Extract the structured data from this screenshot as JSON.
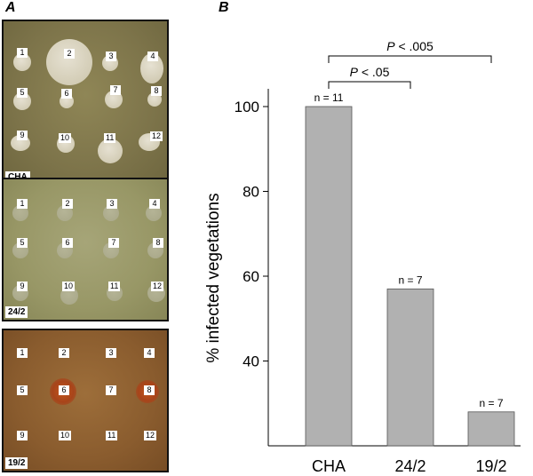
{
  "panel_a": {
    "letter": "A",
    "plates": [
      {
        "label": "CHA",
        "wells": [
          "1",
          "2",
          "3",
          "4",
          "5",
          "6",
          "7",
          "8",
          "9",
          "10",
          "11",
          "12"
        ]
      },
      {
        "label": "24/2",
        "wells": [
          "1",
          "2",
          "3",
          "4",
          "5",
          "6",
          "7",
          "8",
          "9",
          "10",
          "11",
          "12"
        ]
      },
      {
        "label": "19/2",
        "wells": [
          "1",
          "2",
          "3",
          "4",
          "5",
          "6",
          "7",
          "8",
          "9",
          "10",
          "11",
          "12"
        ]
      }
    ]
  },
  "panel_b": {
    "letter": "B"
  },
  "chart_data": {
    "type": "bar",
    "categories": [
      "CHA",
      "24/2",
      "19/2"
    ],
    "values": [
      100,
      57,
      28
    ],
    "data_labels": [
      "n = 11",
      "n = 7",
      "n = 7"
    ],
    "ylabel": "% infected vegetations",
    "xlabel": "",
    "ylim": [
      20,
      110
    ],
    "yticks": [
      "40",
      "60",
      "80",
      "100"
    ],
    "bar_color": "#b1b1b1",
    "significance": [
      {
        "from": "CHA",
        "to": "24/2",
        "p_prefix": "P",
        "p_suffix": " < .05"
      },
      {
        "from": "CHA",
        "to": "19/2",
        "p_prefix": "P",
        "p_suffix": " < .005"
      }
    ]
  }
}
